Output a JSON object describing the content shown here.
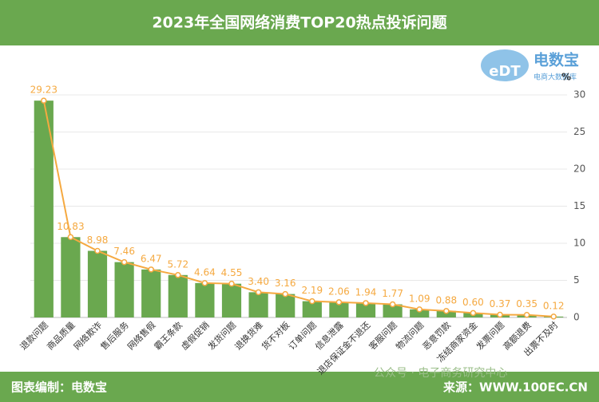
{
  "chart_data": {
    "type": "bar",
    "title": "2023年全国网络消费TOP20热点投诉问题",
    "categories": [
      "退款问题",
      "商品质量",
      "网络欺诈",
      "售后服务",
      "网络售假",
      "霸王条款",
      "虚假促销",
      "发货问题",
      "退换货难",
      "货不对板",
      "订单问题",
      "信息泄露",
      "退店保证金不退还",
      "客服问题",
      "物流问题",
      "恶意罚款",
      "冻结商家资金",
      "发票问题",
      "高额退费",
      "出票不及时"
    ],
    "values": [
      29.23,
      10.83,
      8.98,
      7.46,
      6.47,
      5.72,
      4.64,
      4.55,
      3.4,
      3.16,
      2.19,
      2.06,
      1.94,
      1.77,
      1.09,
      0.88,
      0.6,
      0.37,
      0.35,
      0.12
    ],
    "value_labels": [
      "29.23",
      "10.83",
      "8.98",
      "7.46",
      "6.47",
      "5.72",
      "4.64",
      "4.55",
      "3.40",
      "3.16",
      "2.19",
      "2.06",
      "1.94",
      "1.77",
      "1.09",
      "0.88",
      "0.60",
      "0.37",
      "0.35",
      "0.12"
    ],
    "color": "#6aa84f",
    "line_color": "#f5a940",
    "ylim": [
      0,
      30
    ],
    "yticks": [
      0,
      5,
      10,
      15,
      20,
      25,
      30
    ],
    "y_unit": "%",
    "grid": true,
    "logo": {
      "mark": "eDT",
      "name": "电数宝",
      "tagline": "电商大数据库"
    },
    "footer_left": "图表编制：电数宝",
    "footer_right": "来源：WWW.100EC.CN",
    "watermark": "公众号 · 电子商务研究中心"
  }
}
